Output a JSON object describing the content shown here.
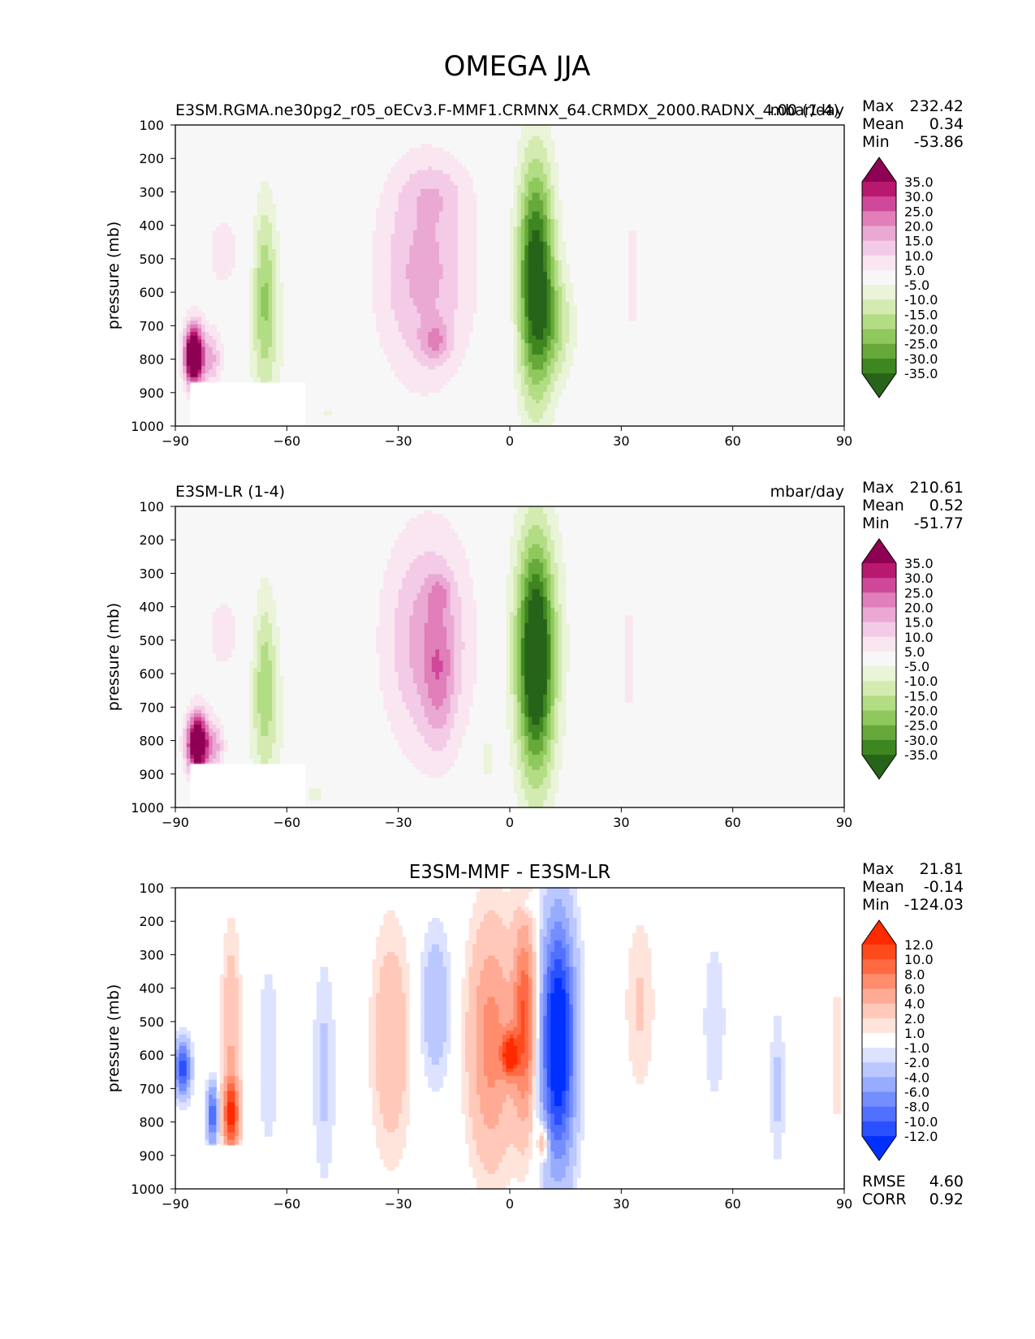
{
  "figure": {
    "title": "OMEGA JJA"
  },
  "chart_data": [
    {
      "type": "heatmap",
      "panel": "test",
      "left_title": "E3SM.RGMA.ne30pg2_r05_oECv3.F-MMF1.CRMNX_64.CRMDX_2000.RADNX_4.00 (1-4)",
      "center_title": "",
      "right_title": "mbar/day",
      "xlabel": "",
      "ylabel": "pressure (mb)",
      "xlim": [
        -90,
        90
      ],
      "ylim": [
        1000,
        100
      ],
      "x_ticks": [
        "−90",
        "−60",
        "−30",
        "0",
        "30",
        "60",
        "90"
      ],
      "y_ticks": [
        "100",
        "200",
        "300",
        "400",
        "500",
        "600",
        "700",
        "800",
        "900",
        "1000"
      ],
      "stats": [
        {
          "label": "Max",
          "value": "232.42"
        },
        {
          "label": "Mean",
          "value": "0.34"
        },
        {
          "label": "Min",
          "value": "-53.86"
        }
      ],
      "colorbar": {
        "levels": [
          "35.0",
          "30.0",
          "25.0",
          "20.0",
          "15.0",
          "10.0",
          "5.0",
          "-5.0",
          "-10.0",
          "-15.0",
          "-20.0",
          "-25.0",
          "-30.0",
          "-35.0"
        ],
        "colors": [
          "#8e0152",
          "#b8186d",
          "#d0489a",
          "#e07fb9",
          "#eaa9d3",
          "#f4cbe6",
          "#fae6f1",
          "#f7f7f7",
          "#e9f4d8",
          "#d3ebb0",
          "#b3dd85",
          "#8fc85d",
          "#67a83a",
          "#3e8620",
          "#276419"
        ]
      },
      "blobs": [
        {
          "lat": -23,
          "p": 540,
          "dlat": 13,
          "dp": 330,
          "v": 17
        },
        {
          "lat": -20,
          "p": 750,
          "dlat": 4,
          "dp": 60,
          "v": 12
        },
        {
          "lat": -20,
          "p": 300,
          "dlat": 9,
          "dp": 90,
          "v": 6
        },
        {
          "lat": 7,
          "p": 560,
          "dlat": 5,
          "dp": 360,
          "v": -42
        },
        {
          "lat": 13,
          "p": 700,
          "dlat": 5,
          "dp": 160,
          "v": -12
        },
        {
          "lat": -66,
          "p": 600,
          "dlat": 3.5,
          "dp": 290,
          "v": -20
        },
        {
          "lat": -63,
          "p": 800,
          "dlat": 9,
          "dp": 250,
          "v": -3
        },
        {
          "lat": -77,
          "p": 480,
          "dlat": 8,
          "dp": 210,
          "v": 6
        },
        {
          "lat": -85,
          "p": 790,
          "dlat": 2.6,
          "dp": 90,
          "v": 55
        },
        {
          "lat": -80,
          "p": 800,
          "dlat": 2.5,
          "dp": 80,
          "v": 15
        },
        {
          "lat": 33,
          "p": 550,
          "dlat": 3,
          "dp": 330,
          "v": 6
        },
        {
          "lat": 58,
          "p": 800,
          "dlat": 3,
          "dp": 330,
          "v": -5
        },
        {
          "lat": -48,
          "p": 960,
          "dlat": 10,
          "dp": 60,
          "v": -5
        },
        {
          "lat": -2,
          "p": 760,
          "dlat": 2.5,
          "dp": 150,
          "v": 5
        }
      ]
    },
    {
      "type": "heatmap",
      "panel": "reference",
      "left_title": "E3SM-LR (1-4)",
      "center_title": "",
      "right_title": "mbar/day",
      "xlabel": "",
      "ylabel": "pressure (mb)",
      "xlim": [
        -90,
        90
      ],
      "ylim": [
        1000,
        100
      ],
      "x_ticks": [
        "−90",
        "−60",
        "−30",
        "0",
        "30",
        "60",
        "90"
      ],
      "y_ticks": [
        "100",
        "200",
        "300",
        "400",
        "500",
        "600",
        "700",
        "800",
        "900",
        "1000"
      ],
      "stats": [
        {
          "label": "Max",
          "value": "210.61"
        },
        {
          "label": "Mean",
          "value": "0.52"
        },
        {
          "label": "Min",
          "value": "-51.77"
        }
      ],
      "colorbar": {
        "levels": [
          "35.0",
          "30.0",
          "25.0",
          "20.0",
          "15.0",
          "10.0",
          "5.0",
          "-5.0",
          "-10.0",
          "-15.0",
          "-20.0",
          "-25.0",
          "-30.0",
          "-35.0"
        ],
        "colors": [
          "#8e0152",
          "#b8186d",
          "#d0489a",
          "#e07fb9",
          "#eaa9d3",
          "#f4cbe6",
          "#fae6f1",
          "#f7f7f7",
          "#e9f4d8",
          "#d3ebb0",
          "#b3dd85",
          "#8fc85d",
          "#67a83a",
          "#3e8620",
          "#276419"
        ]
      },
      "blobs": [
        {
          "lat": -22,
          "p": 500,
          "dlat": 12,
          "dp": 340,
          "v": 18
        },
        {
          "lat": -19,
          "p": 620,
          "dlat": 4,
          "dp": 200,
          "v": 10
        },
        {
          "lat": -19,
          "p": 360,
          "dlat": 3,
          "dp": 50,
          "v": 8
        },
        {
          "lat": 7,
          "p": 560,
          "dlat": 5,
          "dp": 360,
          "v": -42
        },
        {
          "lat": 7,
          "p": 480,
          "dlat": 10,
          "dp": 420,
          "v": -6
        },
        {
          "lat": -66,
          "p": 620,
          "dlat": 3.5,
          "dp": 280,
          "v": -18
        },
        {
          "lat": -63,
          "p": 800,
          "dlat": 9,
          "dp": 250,
          "v": -3
        },
        {
          "lat": -77,
          "p": 480,
          "dlat": 8,
          "dp": 210,
          "v": 6
        },
        {
          "lat": -84,
          "p": 810,
          "dlat": 3,
          "dp": 90,
          "v": 50
        },
        {
          "lat": -79,
          "p": 820,
          "dlat": 2.5,
          "dp": 70,
          "v": 14
        },
        {
          "lat": 32,
          "p": 560,
          "dlat": 3,
          "dp": 330,
          "v": 6
        },
        {
          "lat": 26,
          "p": 750,
          "dlat": 2,
          "dp": 120,
          "v": 5
        },
        {
          "lat": 60,
          "p": 780,
          "dlat": 2.5,
          "dp": 300,
          "v": -5
        },
        {
          "lat": -6,
          "p": 850,
          "dlat": 2,
          "dp": 80,
          "v": -8
        },
        {
          "lat": -52,
          "p": 960,
          "dlat": 5,
          "dp": 60,
          "v": -5
        }
      ]
    },
    {
      "type": "heatmap",
      "panel": "difference",
      "left_title": "",
      "center_title": "E3SM-MMF - E3SM-LR",
      "right_title": "",
      "xlabel": "",
      "ylabel": "pressure (mb)",
      "xlim": [
        -90,
        90
      ],
      "ylim": [
        1000,
        100
      ],
      "x_ticks": [
        "−90",
        "−60",
        "−30",
        "0",
        "30",
        "60",
        "90"
      ],
      "y_ticks": [
        "100",
        "200",
        "300",
        "400",
        "500",
        "600",
        "700",
        "800",
        "900",
        "1000"
      ],
      "stats": [
        {
          "label": "Max",
          "value": "21.81"
        },
        {
          "label": "Mean",
          "value": "-0.14"
        },
        {
          "label": "Min",
          "value": "-124.03"
        }
      ],
      "bottom_stats": [
        {
          "label": "RMSE",
          "value": "4.60"
        },
        {
          "label": "CORR",
          "value": "0.92"
        }
      ],
      "colorbar": {
        "levels": [
          "12.0",
          "10.0",
          "8.0",
          "6.0",
          "4.0",
          "2.0",
          "1.0",
          "-1.0",
          "-2.0",
          "-4.0",
          "-6.0",
          "-8.0",
          "-10.0",
          "-12.0"
        ],
        "colors": [
          "#ff2a00",
          "#ff4a1e",
          "#ff6a44",
          "#ff8c6c",
          "#ffaa94",
          "#ffc8b8",
          "#ffe4dc",
          "#ffffff",
          "#dde3ff",
          "#bac8ff",
          "#97abff",
          "#748dff",
          "#5170ff",
          "#2a50ff",
          "#0030ff"
        ]
      },
      "blobs": [
        {
          "lat": 13,
          "p": 560,
          "dlat": 4.5,
          "dp": 360,
          "v": -16
        },
        {
          "lat": 4,
          "p": 500,
          "dlat": 3,
          "dp": 300,
          "v": 10
        },
        {
          "lat": -5,
          "p": 560,
          "dlat": 6,
          "dp": 350,
          "v": 7
        },
        {
          "lat": 0,
          "p": 600,
          "dlat": 2,
          "dp": 60,
          "v": 12
        },
        {
          "lat": -32,
          "p": 560,
          "dlat": 5,
          "dp": 330,
          "v": 4
        },
        {
          "lat": -20,
          "p": 450,
          "dlat": 4,
          "dp": 220,
          "v": -4
        },
        {
          "lat": -50,
          "p": 650,
          "dlat": 3,
          "dp": 330,
          "v": -2.5
        },
        {
          "lat": -75,
          "p": 550,
          "dlat": 2.5,
          "dp": 310,
          "v": 4
        },
        {
          "lat": -75,
          "p": 780,
          "dlat": 2,
          "dp": 100,
          "v": 12
        },
        {
          "lat": -80,
          "p": 780,
          "dlat": 1.5,
          "dp": 90,
          "v": -10
        },
        {
          "lat": -88,
          "p": 640,
          "dlat": 2,
          "dp": 80,
          "v": -12
        },
        {
          "lat": -65,
          "p": 600,
          "dlat": 3,
          "dp": 300,
          "v": -2
        },
        {
          "lat": 55,
          "p": 500,
          "dlat": 4,
          "dp": 330,
          "v": -1.5
        },
        {
          "lat": 35,
          "p": 450,
          "dlat": 4,
          "dp": 270,
          "v": 2.2
        },
        {
          "lat": 72,
          "p": 700,
          "dlat": 2,
          "dp": 230,
          "v": -2.5
        },
        {
          "lat": 88,
          "p": 600,
          "dlat": 2,
          "dp": 300,
          "v": 1.5
        },
        {
          "lat": 9,
          "p": 860,
          "dlat": 1.5,
          "dp": 50,
          "v": 6
        },
        {
          "lat": 5,
          "p": 150,
          "dlat": 2,
          "dp": 30,
          "v": -2
        }
      ]
    }
  ]
}
